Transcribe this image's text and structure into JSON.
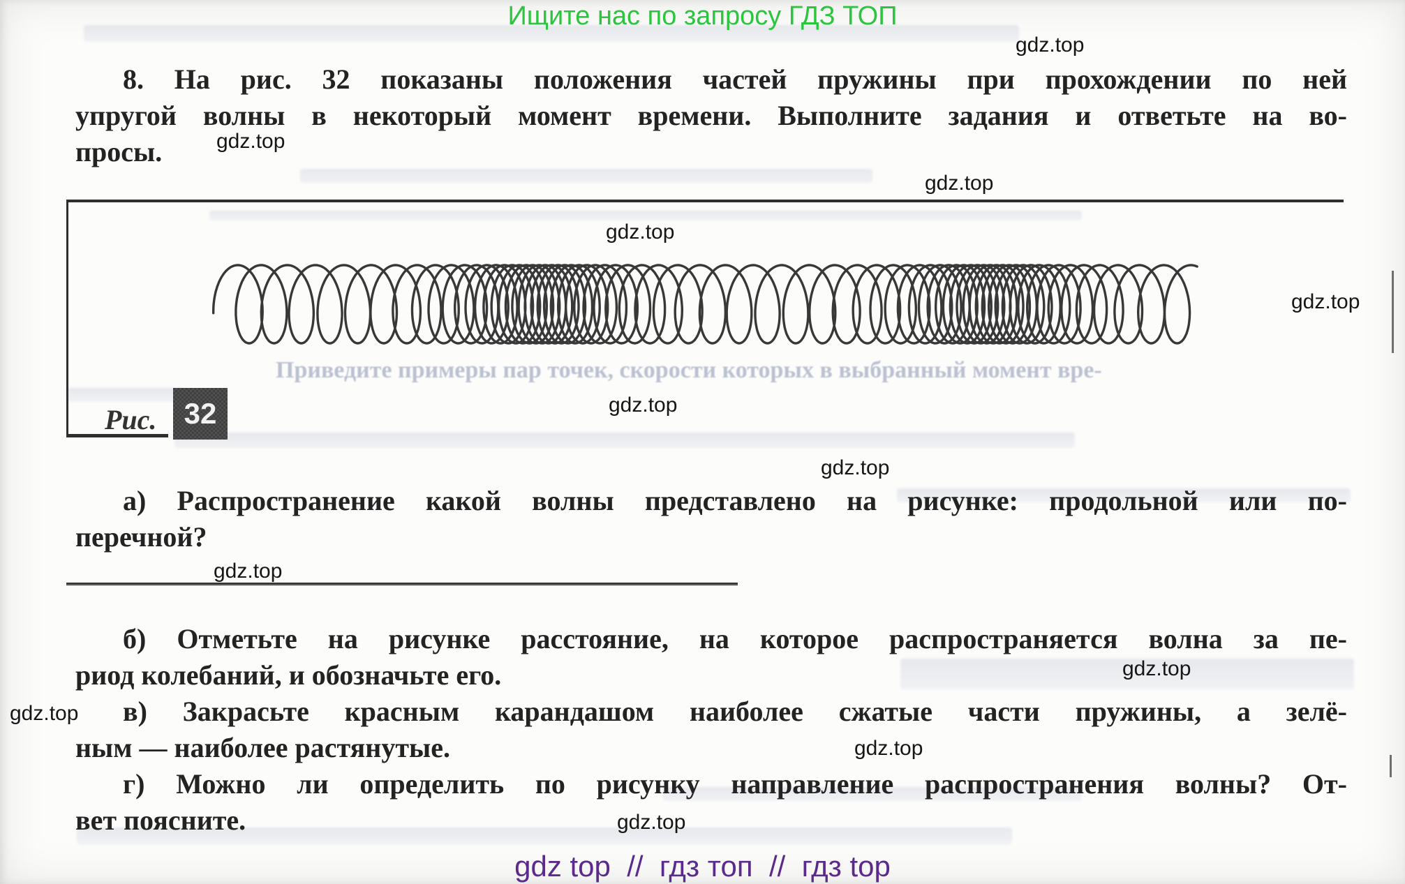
{
  "header": {
    "promo": "Ищите нас по запросу ГДЗ ТОП"
  },
  "watermark": {
    "label": "gdz.top"
  },
  "problem": {
    "number": "8.",
    "lines": [
      "8. На рис. 32 показаны положения частей пружины при прохождении по ней",
      "упругой волны в некоторый момент времени. Выполните задания и ответьте на во-",
      "просы."
    ]
  },
  "figure": {
    "caption_label": "Рис.",
    "caption_number": "32",
    "description": "Пружина с чередующимися сжатыми и растянутыми участками (продольная волна)"
  },
  "questions": {
    "qa": {
      "lines": [
        "а) Распространение какой волны представлено на рисунке: продольной или по-",
        "перечной?"
      ]
    },
    "qb": {
      "lines": [
        "б) Отметьте на рисунке расстояние, на которое распространяется волна за пе-",
        "риод колебаний, и обозначьте его."
      ]
    },
    "qv": {
      "lines": [
        "в) Закрасьте красным карандашом наиболее сжатые части пружины, а зелё-",
        "ным — наиболее растянутые."
      ]
    },
    "qg": {
      "lines": [
        "г) Можно ли определить по рисунку направление распространения волны? От-",
        "вет поясните."
      ]
    }
  },
  "artifacts": {
    "bleed_line": "Приведите примеры пар точек, скорости которых в выбранный момент вре-"
  },
  "footer": {
    "text": "gdz top  //  гдз топ  //  гдз top"
  },
  "colors": {
    "promo_green": "#2bc53e",
    "footer_purple": "#5b2a8c",
    "ink": "#232323",
    "figure_badge_bg": "#454545"
  }
}
